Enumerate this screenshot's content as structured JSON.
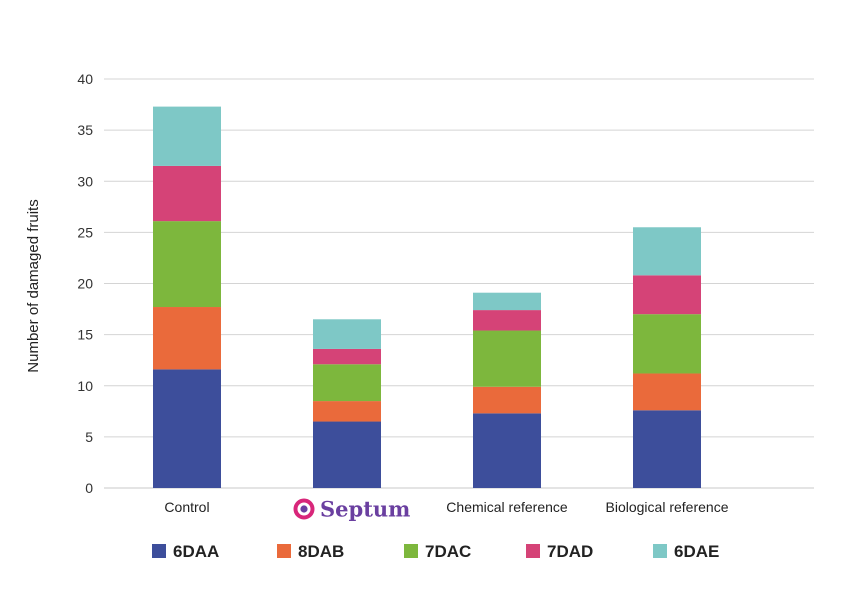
{
  "chart_data": {
    "type": "bar",
    "stacked": true,
    "title": "",
    "xlabel": "",
    "ylabel": "Number of damaged fruits",
    "ylim": [
      0,
      40
    ],
    "yticks": [
      0,
      5,
      10,
      15,
      20,
      25,
      30,
      35,
      40
    ],
    "grid": true,
    "legend_position": "bottom",
    "categories": [
      "Control",
      "Septum",
      "Chemical reference",
      "Biological reference"
    ],
    "category_logo_index": 1,
    "series": [
      {
        "name": "6DAA",
        "color": "#3d4e9b",
        "values": [
          11.6,
          6.5,
          7.3,
          7.6
        ]
      },
      {
        "name": "8DAB",
        "color": "#ea6a3b",
        "values": [
          6.1,
          2.0,
          2.6,
          3.6
        ]
      },
      {
        "name": "7DAC",
        "color": "#7db73d",
        "values": [
          8.4,
          3.6,
          5.5,
          5.8
        ]
      },
      {
        "name": "7DAD",
        "color": "#d54377",
        "values": [
          5.4,
          1.5,
          2.0,
          3.8
        ]
      },
      {
        "name": "6DAE",
        "color": "#7ec8c6",
        "values": [
          5.8,
          2.9,
          1.7,
          4.7
        ]
      }
    ]
  },
  "logo": {
    "text": "Septum",
    "registered_mark": "·",
    "icon": "septum-ring-icon",
    "ring_color": "#d8267a",
    "dot_color": "#6a3fa0"
  }
}
